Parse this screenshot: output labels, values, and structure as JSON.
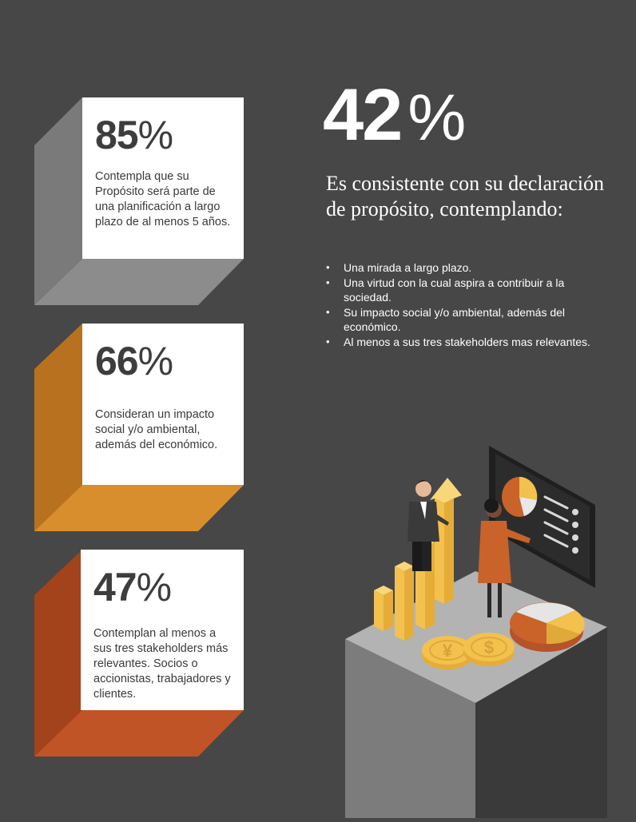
{
  "stats": [
    {
      "value": "85",
      "symbol": "%",
      "description": "Contempla que su Propósito será parte de una planificación a largo plazo de al menos 5 años.",
      "color": "#8c8c8c"
    },
    {
      "value": "66",
      "symbol": "%",
      "description": "Consideran un impacto social y/o ambiental, además del económico.",
      "color": "#d98e2e"
    },
    {
      "value": "47",
      "symbol": "%",
      "description": "Contemplan al menos a sus tres stakeholders más relevantes. Socios o accionistas, trabajadores y clientes.",
      "color": "#c05426"
    }
  ],
  "highlight": {
    "value": "42",
    "symbol": "%",
    "headline": "Es consistente con su declaración de propósito, contemplando:",
    "bullets": [
      "Una mirada a largo plazo.",
      "Una virtud con la cual aspira a contribuir a la sociedad.",
      "Su impacto social y/o ambiental, además del económico.",
      "Al menos a sus tres stakeholders mas relevantes."
    ]
  },
  "colors": {
    "background": "#474747",
    "card": "#ffffff",
    "gold": "#f2c14e",
    "orange": "#c9632a"
  },
  "illustration": {
    "coin_symbols": [
      "¥",
      "$"
    ]
  }
}
